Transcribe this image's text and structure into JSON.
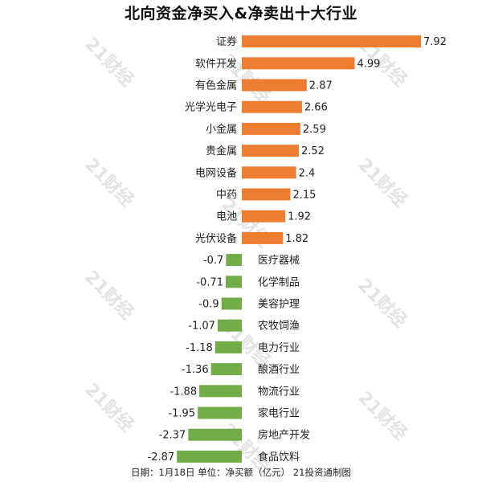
{
  "chart_data": {
    "type": "bar",
    "orientation": "horizontal",
    "title": "北向资金净买入&净卖出十大行业",
    "footer": "日期：1月18日 单位：净买额（亿元） 21投资通制图",
    "watermark": "21财经",
    "colors": {
      "positive": "#ED7D31",
      "negative": "#70AD47"
    },
    "categories": [
      "证券",
      "软件开发",
      "有色金属",
      "光学光电子",
      "小金属",
      "贵金属",
      "电网设备",
      "中药",
      "电池",
      "光伏设备",
      "医疗器械",
      "化学制品",
      "美容护理",
      "农牧饲渔",
      "电力行业",
      "酿酒行业",
      "物流行业",
      "家电行业",
      "房地产开发",
      "食品饮料"
    ],
    "values": [
      7.92,
      4.99,
      2.87,
      2.66,
      2.59,
      2.52,
      2.4,
      2.15,
      1.92,
      1.82,
      -0.7,
      -0.71,
      -0.9,
      -1.07,
      -1.18,
      -1.36,
      -1.88,
      -1.95,
      -2.37,
      -2.87
    ],
    "value_labels": [
      "7.92",
      "4.99",
      "2.87",
      "2.66",
      "2.59",
      "2.52",
      "2.4",
      "2.15",
      "1.92",
      "1.82",
      "-0.7",
      "-0.71",
      "-0.9",
      "-1.07",
      "-1.18",
      "-1.36",
      "-1.88",
      "-1.95",
      "-2.37",
      "-2.87"
    ],
    "xlim": [
      -2.87,
      7.92
    ],
    "grid": false,
    "legend": false
  }
}
